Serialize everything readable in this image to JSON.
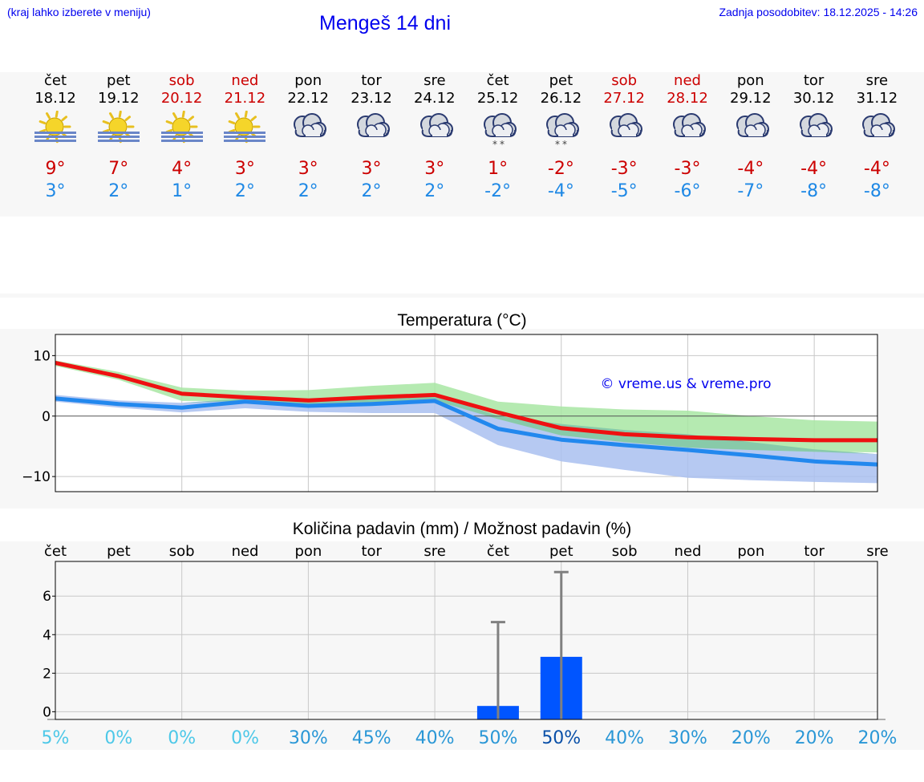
{
  "header": {
    "hint": "(kraj lahko izberete v meniju)",
    "title": "Mengeš 14 dni",
    "updated": "Zadnja posodobitev: 18.12.2025 - 14:26"
  },
  "days": [
    {
      "name": "čet",
      "date": "18.12",
      "icon": "sun-fog-icon",
      "max": "9°",
      "min": "3°",
      "weekend": false,
      "snow": false
    },
    {
      "name": "pet",
      "date": "19.12",
      "icon": "sun-fog-icon",
      "max": "7°",
      "min": "2°",
      "weekend": false,
      "snow": false
    },
    {
      "name": "sob",
      "date": "20.12",
      "icon": "sun-fog-icon",
      "max": "4°",
      "min": "1°",
      "weekend": true,
      "snow": false
    },
    {
      "name": "ned",
      "date": "21.12",
      "icon": "sun-fog-icon",
      "max": "3°",
      "min": "2°",
      "weekend": true,
      "snow": false
    },
    {
      "name": "pon",
      "date": "22.12",
      "icon": "cloud-icon",
      "max": "3°",
      "min": "2°",
      "weekend": false,
      "snow": false
    },
    {
      "name": "tor",
      "date": "23.12",
      "icon": "cloud-icon",
      "max": "3°",
      "min": "2°",
      "weekend": false,
      "snow": false
    },
    {
      "name": "sre",
      "date": "24.12",
      "icon": "cloud-icon",
      "max": "3°",
      "min": "2°",
      "weekend": false,
      "snow": false
    },
    {
      "name": "čet",
      "date": "25.12",
      "icon": "cloud-snow-icon",
      "max": "1°",
      "min": "-2°",
      "weekend": false,
      "snow": true
    },
    {
      "name": "pet",
      "date": "26.12",
      "icon": "cloud-snow-icon",
      "max": "-2°",
      "min": "-4°",
      "weekend": false,
      "snow": true
    },
    {
      "name": "sob",
      "date": "27.12",
      "icon": "cloud-icon",
      "max": "-3°",
      "min": "-5°",
      "weekend": true,
      "snow": false
    },
    {
      "name": "ned",
      "date": "28.12",
      "icon": "cloud-icon",
      "max": "-3°",
      "min": "-6°",
      "weekend": true,
      "snow": false
    },
    {
      "name": "pon",
      "date": "29.12",
      "icon": "cloud-icon",
      "max": "-4°",
      "min": "-7°",
      "weekend": false,
      "snow": false
    },
    {
      "name": "tor",
      "date": "30.12",
      "icon": "cloud-icon",
      "max": "-4°",
      "min": "-8°",
      "weekend": false,
      "snow": false
    },
    {
      "name": "sre",
      "date": "31.12",
      "icon": "cloud-icon",
      "max": "-4°",
      "min": "-8°",
      "weekend": false,
      "snow": false
    }
  ],
  "colors": {
    "max_line": "#ee1111",
    "min_line": "#2288ee",
    "max_band": "#a8e6a3",
    "min_band": "#a9bff0",
    "overlap_band": "#80c4a8",
    "bar": "#0055ff",
    "errbar": "#808080",
    "pct_light": "#4dc8e8",
    "pct_mid": "#2a97d6",
    "pct_dark": "#0a50a8"
  },
  "chart_data": [
    {
      "type": "line",
      "title": "Temperatura (°C)",
      "watermark": "© vreme.us & vreme.pro",
      "x": [
        0,
        1,
        2,
        3,
        4,
        5,
        6,
        7,
        8,
        9,
        10,
        11,
        12,
        13
      ],
      "ylim": [
        -12.5,
        13.5
      ],
      "yticks": [
        "10",
        "0",
        "−10"
      ],
      "ytick_values": [
        10,
        0,
        -10
      ],
      "series": [
        {
          "name": "max",
          "values": [
            8.8,
            6.6,
            3.7,
            3.1,
            2.6,
            3.1,
            3.5,
            0.6,
            -2.0,
            -3.0,
            -3.5,
            -3.8,
            -4.0,
            -4.0
          ],
          "band_low": [
            8.3,
            6.0,
            2.5,
            2.5,
            2.0,
            2.3,
            2.6,
            -0.5,
            -3.2,
            -4.3,
            -5.2,
            -5.6,
            -5.9,
            -6.0
          ],
          "band_high": [
            9.2,
            7.3,
            4.7,
            4.2,
            4.3,
            5.0,
            5.5,
            2.4,
            1.6,
            1.1,
            0.9,
            0.0,
            -0.7,
            -0.9
          ]
        },
        {
          "name": "min",
          "values": [
            2.9,
            2.0,
            1.4,
            2.4,
            1.7,
            2.0,
            2.5,
            -2.1,
            -3.9,
            -4.8,
            -5.6,
            -6.5,
            -7.5,
            -8.0
          ],
          "band_low": [
            2.4,
            1.4,
            0.6,
            1.3,
            0.7,
            0.5,
            0.5,
            -4.8,
            -7.5,
            -8.9,
            -10.2,
            -10.6,
            -10.9,
            -11.1
          ],
          "band_high": [
            3.5,
            2.6,
            2.2,
            2.9,
            2.8,
            3.4,
            3.6,
            0.0,
            -1.3,
            -2.3,
            -3.0,
            -4.3,
            -5.5,
            -6.3
          ]
        }
      ]
    },
    {
      "type": "bar",
      "title": "Količina padavin (mm) / Možnost padavin (%)",
      "categories": [
        "čet",
        "pet",
        "sob",
        "ned",
        "pon",
        "tor",
        "sre",
        "čet",
        "pet",
        "sob",
        "ned",
        "pon",
        "tor",
        "sre"
      ],
      "values": [
        0,
        0,
        0,
        0,
        0,
        0,
        0,
        0.3,
        2.85,
        0,
        0,
        0,
        0,
        0
      ],
      "error_high": [
        0,
        0,
        0,
        0,
        0,
        0,
        0,
        4.65,
        7.25,
        0,
        0,
        0,
        0,
        0
      ],
      "probability": [
        "5%",
        "0%",
        "0%",
        "0%",
        "30%",
        "45%",
        "40%",
        "50%",
        "50%",
        "40%",
        "30%",
        "20%",
        "20%",
        "20%"
      ],
      "probability_values": [
        5,
        0,
        0,
        0,
        30,
        45,
        40,
        50,
        50,
        40,
        30,
        20,
        20,
        20
      ],
      "ylim": [
        -0.4,
        7.8
      ],
      "yticks": [
        "0",
        "2",
        "4",
        "6"
      ],
      "ytick_values": [
        0,
        2,
        4,
        6
      ]
    }
  ]
}
